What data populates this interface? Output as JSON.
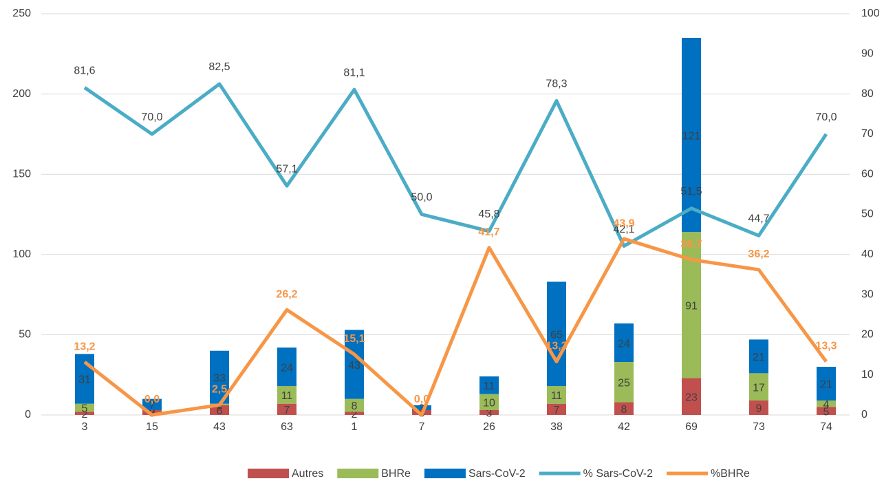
{
  "chart_data": {
    "type": "bar",
    "categories": [
      "3",
      "15",
      "43",
      "63",
      "1",
      "7",
      "26",
      "38",
      "42",
      "69",
      "73",
      "74"
    ],
    "series": [
      {
        "name": "Autres",
        "color": "#c0504d",
        "values": [
          2,
          3,
          6,
          7,
          2,
          3,
          3,
          7,
          8,
          23,
          9,
          5
        ]
      },
      {
        "name": "BHRe",
        "color": "#9bbb59",
        "values": [
          5,
          0,
          1,
          11,
          8,
          0,
          10,
          11,
          25,
          91,
          17,
          4
        ]
      },
      {
        "name": "Sars-CoV-2",
        "color": "#0070c0",
        "values": [
          31,
          7,
          33,
          24,
          43,
          3,
          11,
          65,
          24,
          121,
          21,
          21
        ]
      },
      {
        "name": "% Sars-CoV-2",
        "color": "#4bacc6",
        "type": "line",
        "axis": "y2",
        "values": [
          81.6,
          70.0,
          82.5,
          57.1,
          81.1,
          50.0,
          45.8,
          78.3,
          42.1,
          51.5,
          44.7,
          70.0
        ],
        "value_labels": [
          "81,6",
          "70,0",
          "82,5",
          "57,1",
          "81,1",
          "50,0",
          "45,8",
          "78,3",
          "42,1",
          "51,5",
          "44,7",
          "70,0"
        ]
      },
      {
        "name": "%BHRe",
        "color": "#f79646",
        "type": "line",
        "axis": "y2",
        "values": [
          13.2,
          0.0,
          2.5,
          26.2,
          15.1,
          0.0,
          41.7,
          13.3,
          43.9,
          38.7,
          36.2,
          13.3
        ],
        "value_labels": [
          "13,2",
          "0,0",
          "2,5",
          "26,2",
          "15,1",
          "0,0",
          "41,7",
          "13,3",
          "43,9",
          "38,7",
          "36,2",
          "13,3"
        ]
      }
    ],
    "stacked": true,
    "ylim": [
      0,
      250
    ],
    "yticks": [
      0,
      50,
      100,
      150,
      200,
      250
    ],
    "y2lim": [
      0,
      100
    ],
    "y2ticks": [
      0,
      10,
      20,
      30,
      40,
      50,
      60,
      70,
      80,
      90,
      100
    ],
    "grid": true,
    "legend": "bottom"
  }
}
